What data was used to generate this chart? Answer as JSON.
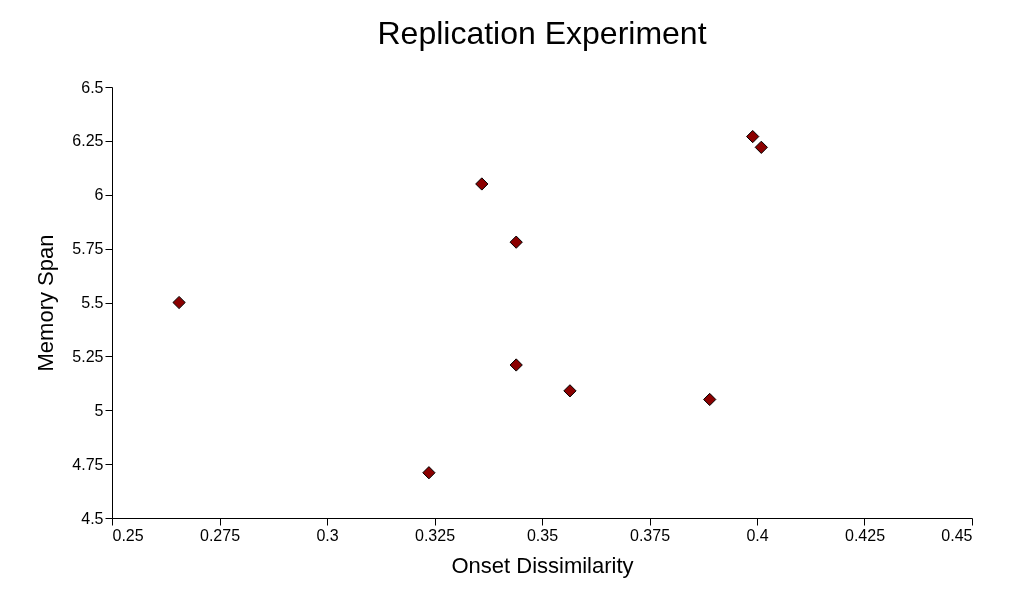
{
  "chart_data": {
    "type": "scatter",
    "title": "Replication Experiment",
    "xlabel": "Onset Dissimilarity",
    "ylabel": "Memory Span",
    "x": [
      0.2656,
      0.3237,
      0.336,
      0.344,
      0.344,
      0.3565,
      0.389,
      0.399,
      0.401
    ],
    "series": [
      {
        "color": "#8b0000",
        "values": [
          5.5,
          4.71,
          6.05,
          5.78,
          5.21,
          5.09,
          5.05,
          6.27,
          6.22
        ]
      }
    ],
    "xlim": [
      0.25,
      0.45
    ],
    "xticks": [
      0.25,
      0.275,
      0.3,
      0.325,
      0.35,
      0.375,
      0.4,
      0.425,
      0.45
    ],
    "ylim": [
      4.5,
      6.5
    ],
    "yticks": [
      4.5,
      4.75,
      5,
      5.25,
      5.5,
      5.75,
      6,
      6.25,
      6.5
    ],
    "grid": false,
    "marker": "diamond"
  }
}
